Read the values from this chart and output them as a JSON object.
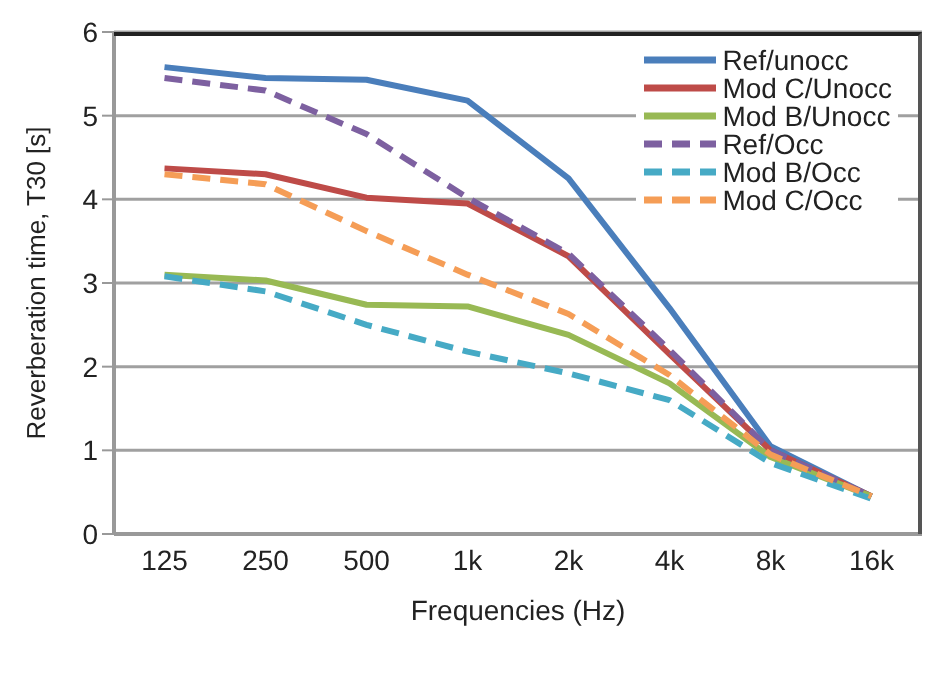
{
  "chart_data": {
    "type": "line",
    "xlabel": "Frequencies (Hz)",
    "ylabel": "Reverberation time, T30 [s]",
    "categories": [
      "125",
      "250",
      "500",
      "1k",
      "2k",
      "4k",
      "8k",
      "16k"
    ],
    "series": [
      {
        "name": "Ref/unocc",
        "color": "#4a7ebb",
        "line_style": "solid",
        "values": [
          5.58,
          5.45,
          5.43,
          5.18,
          4.25,
          2.7,
          1.05,
          0.45
        ]
      },
      {
        "name": "Mod C/Unocc",
        "color": "#be4b48",
        "line_style": "solid",
        "values": [
          4.37,
          4.3,
          4.02,
          3.95,
          3.32,
          2.15,
          1.0,
          0.45
        ]
      },
      {
        "name": "Mod B/Unocc",
        "color": "#98b954",
        "line_style": "solid",
        "values": [
          3.1,
          3.03,
          2.74,
          2.72,
          2.38,
          1.8,
          0.92,
          0.45
        ]
      },
      {
        "name": "Ref/Occ",
        "color": "#7d60a0",
        "line_style": "dashed",
        "values": [
          5.45,
          5.3,
          4.78,
          4.02,
          3.35,
          2.2,
          1.0,
          0.45
        ]
      },
      {
        "name": "Mod B/Occ",
        "color": "#46aac5",
        "line_style": "dashed",
        "values": [
          3.08,
          2.9,
          2.5,
          2.18,
          1.92,
          1.6,
          0.85,
          0.42
        ]
      },
      {
        "name": "Mod C/Occ",
        "color": "#f59d56",
        "line_style": "dashed",
        "values": [
          4.3,
          4.18,
          3.62,
          3.1,
          2.63,
          1.9,
          0.95,
          0.45
        ]
      }
    ],
    "ylim": [
      0,
      6
    ],
    "yticks": [
      0,
      1,
      2,
      3,
      4,
      5,
      6
    ],
    "grid": "y",
    "legend": "top right",
    "marker": "none"
  }
}
